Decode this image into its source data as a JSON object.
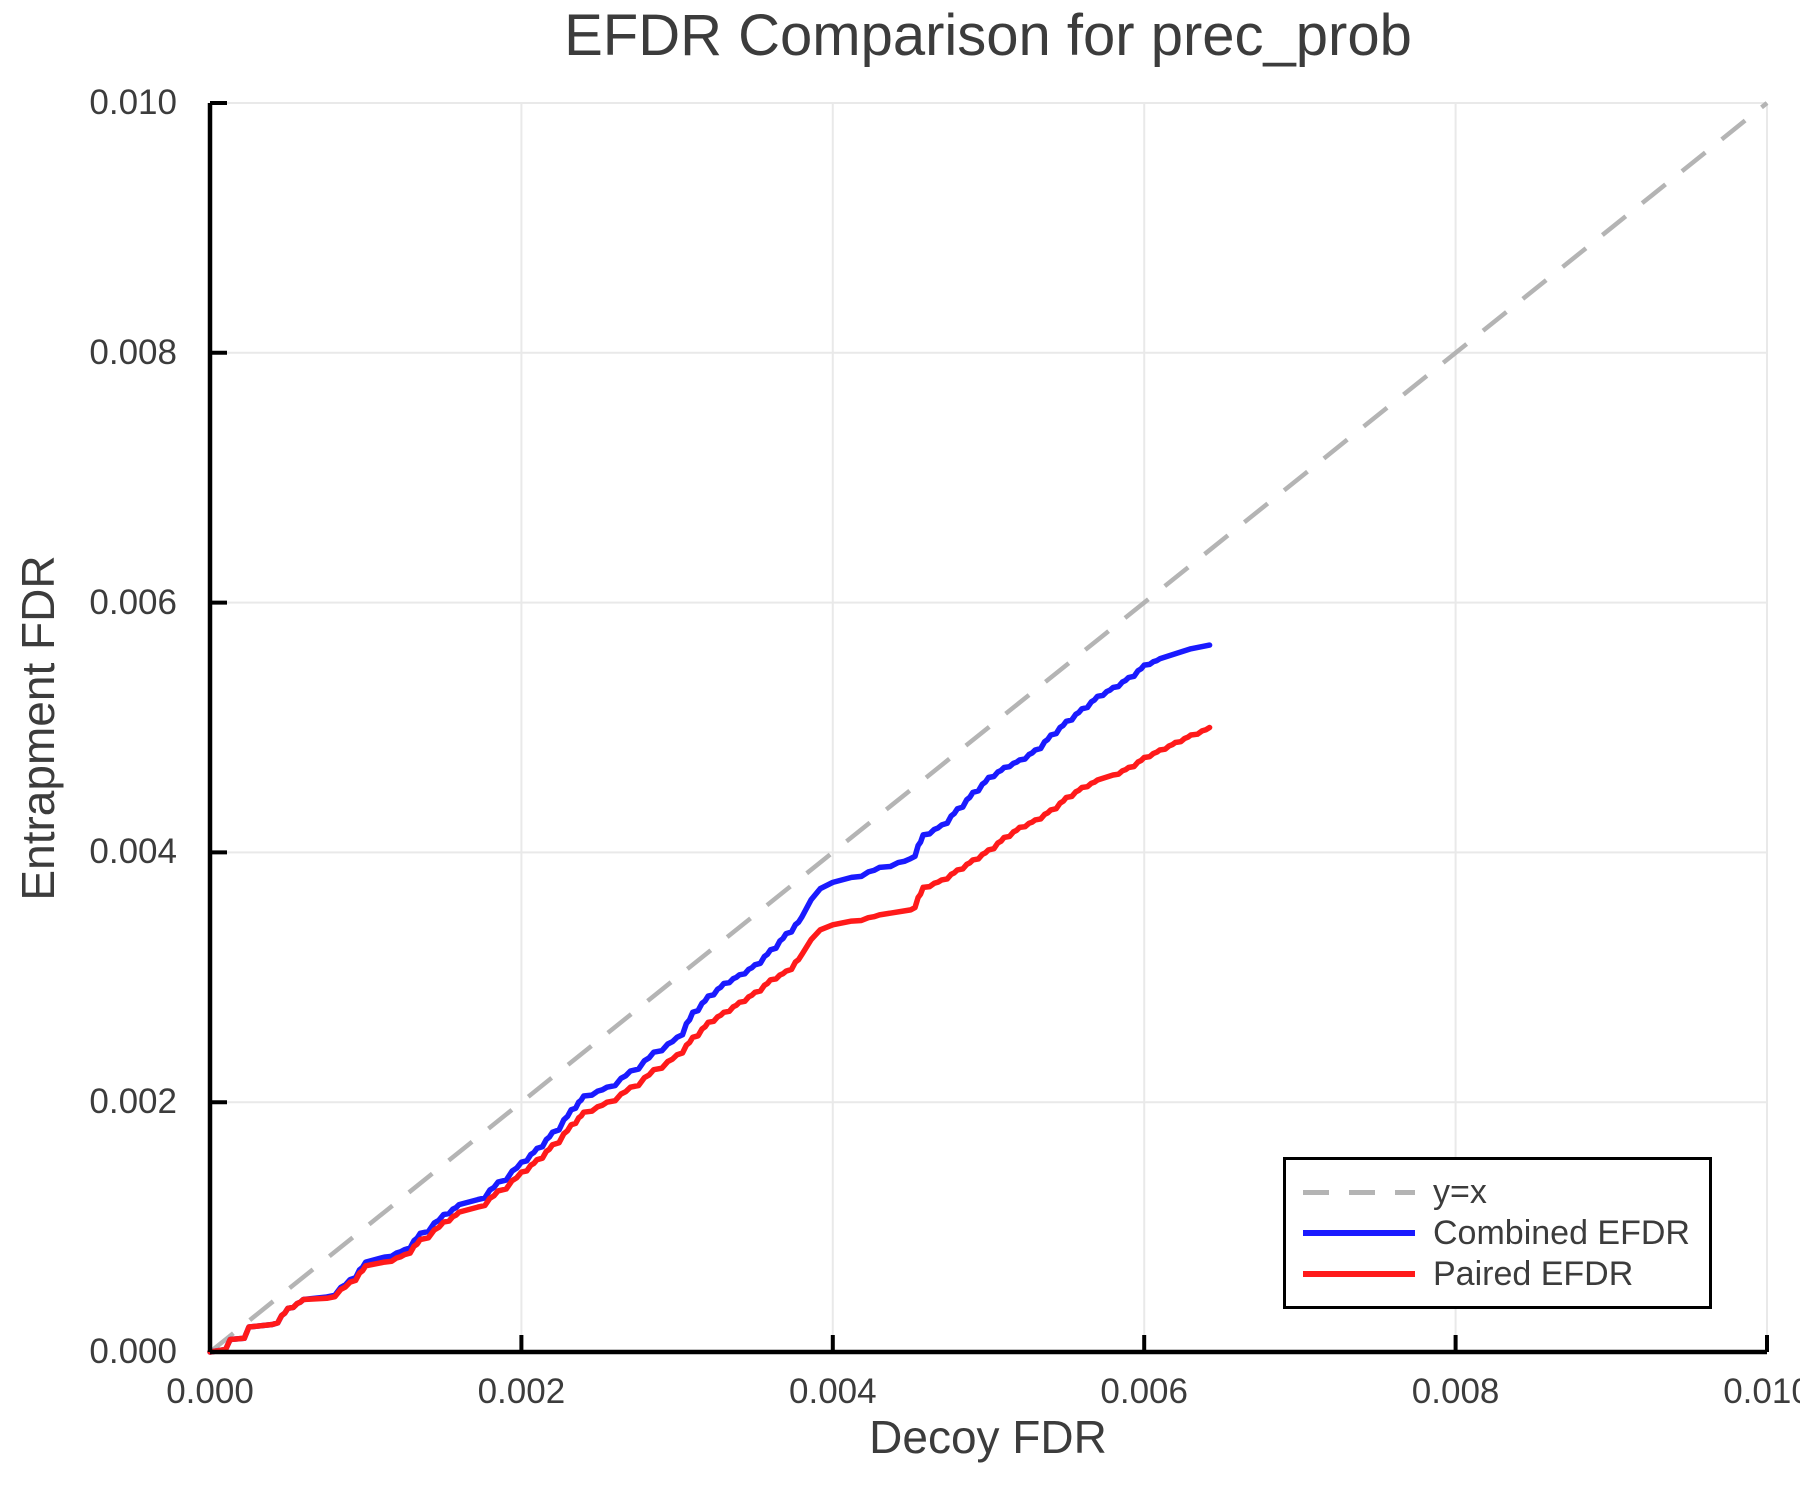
{
  "title": "EFDR Comparison for prec_prob",
  "axes": {
    "xlabel": "Decoy FDR",
    "ylabel": "Entrapment FDR"
  },
  "legend": {
    "position": "bottom-right",
    "entries": [
      {
        "label": "y=x",
        "style": "dashed",
        "color": "#b4b4b4"
      },
      {
        "label": "Combined EFDR",
        "style": "solid",
        "color": "#1a1aff"
      },
      {
        "label": "Paired EFDR",
        "style": "solid",
        "color": "#ff1a1a"
      }
    ]
  },
  "colors": {
    "grid": "#e9e9e9",
    "spine": "#000000",
    "text": "#3c3c3c",
    "background": "#ffffff",
    "combined": "#1a1aff",
    "paired": "#ff1a1a",
    "identity": "#b4b4b4"
  },
  "chart_data": {
    "type": "line",
    "title": "EFDR Comparison for prec_prob",
    "xlabel": "Decoy FDR",
    "ylabel": "Entrapment FDR",
    "xlim": [
      0.0,
      0.01
    ],
    "ylim": [
      0.0,
      0.01
    ],
    "grid": true,
    "legend_position": "bottom-right",
    "x_ticks": [
      0.0,
      0.002,
      0.004,
      0.006,
      0.008,
      0.01
    ],
    "y_ticks": [
      0.0,
      0.002,
      0.004,
      0.006,
      0.008,
      0.01
    ],
    "x_tick_labels": [
      "0.000",
      "0.002",
      "0.004",
      "0.006",
      "0.008",
      "0.010"
    ],
    "y_tick_labels": [
      "0.000",
      "0.002",
      "0.004",
      "0.006",
      "0.008",
      "0.010"
    ],
    "reference_line": {
      "label": "y=x",
      "from": [
        0.0,
        0.0
      ],
      "to": [
        0.01,
        0.01
      ],
      "style": "dashed",
      "color": "#b4b4b4"
    },
    "series": [
      {
        "id": "combined-efdr",
        "name": "Combined EFDR",
        "color": "#1a1aff",
        "points": [
          [
            0.0,
            0.0
          ],
          [
            0.0001,
            2e-05
          ],
          [
            0.00013,
            0.0001
          ],
          [
            0.00022,
            0.00011
          ],
          [
            0.00025,
            0.0002
          ],
          [
            0.0004,
            0.00022
          ],
          [
            0.0005,
            0.00035
          ],
          [
            0.0006,
            0.00042
          ],
          [
            0.00075,
            0.00044
          ],
          [
            0.0009,
            0.00058
          ],
          [
            0.001,
            0.00072
          ],
          [
            0.00112,
            0.00076
          ],
          [
            0.00125,
            0.00082
          ],
          [
            0.00135,
            0.00095
          ],
          [
            0.0015,
            0.0011
          ],
          [
            0.0016,
            0.00118
          ],
          [
            0.00172,
            0.00122
          ],
          [
            0.00185,
            0.00136
          ],
          [
            0.002,
            0.00152
          ],
          [
            0.0021,
            0.00163
          ],
          [
            0.0022,
            0.00176
          ],
          [
            0.00232,
            0.00194
          ],
          [
            0.0024,
            0.00205
          ],
          [
            0.00255,
            0.00212
          ],
          [
            0.0027,
            0.00225
          ],
          [
            0.00285,
            0.0024
          ],
          [
            0.003,
            0.00252
          ],
          [
            0.0031,
            0.00272
          ],
          [
            0.0032,
            0.00285
          ],
          [
            0.0033,
            0.00295
          ],
          [
            0.0034,
            0.00302
          ],
          [
            0.0035,
            0.0031
          ],
          [
            0.0036,
            0.00322
          ],
          [
            0.0037,
            0.00335
          ],
          [
            0.0038,
            0.00348
          ],
          [
            0.00386,
            0.00362
          ],
          [
            0.00392,
            0.00371
          ],
          [
            0.004,
            0.00376
          ],
          [
            0.00412,
            0.0038
          ],
          [
            0.0043,
            0.00388
          ],
          [
            0.0045,
            0.00395
          ],
          [
            0.00458,
            0.00414
          ],
          [
            0.0047,
            0.00422
          ],
          [
            0.0048,
            0.00435
          ],
          [
            0.0049,
            0.00448
          ],
          [
            0.005,
            0.0046
          ],
          [
            0.0051,
            0.00468
          ],
          [
            0.0052,
            0.00474
          ],
          [
            0.0053,
            0.00482
          ],
          [
            0.0054,
            0.00494
          ],
          [
            0.0055,
            0.00505
          ],
          [
            0.0056,
            0.00515
          ],
          [
            0.0057,
            0.00525
          ],
          [
            0.0058,
            0.00532
          ],
          [
            0.0059,
            0.0054
          ],
          [
            0.006,
            0.0055
          ],
          [
            0.0061,
            0.00555
          ],
          [
            0.0062,
            0.00559
          ],
          [
            0.0063,
            0.00563
          ],
          [
            0.00642,
            0.00566
          ]
        ]
      },
      {
        "id": "paired-efdr",
        "name": "Paired EFDR",
        "color": "#ff1a1a",
        "points": [
          [
            0.0,
            0.0
          ],
          [
            0.0001,
            2e-05
          ],
          [
            0.00013,
            0.0001
          ],
          [
            0.00022,
            0.00011
          ],
          [
            0.00025,
            0.0002
          ],
          [
            0.0004,
            0.00022
          ],
          [
            0.0005,
            0.00035
          ],
          [
            0.0006,
            0.00042
          ],
          [
            0.00075,
            0.00043
          ],
          [
            0.0009,
            0.00056
          ],
          [
            0.001,
            0.00069
          ],
          [
            0.00112,
            0.00072
          ],
          [
            0.00125,
            0.00078
          ],
          [
            0.00135,
            0.0009
          ],
          [
            0.0015,
            0.00104
          ],
          [
            0.0016,
            0.00112
          ],
          [
            0.00172,
            0.00116
          ],
          [
            0.00185,
            0.00129
          ],
          [
            0.002,
            0.00144
          ],
          [
            0.0021,
            0.00154
          ],
          [
            0.0022,
            0.00166
          ],
          [
            0.00232,
            0.00182
          ],
          [
            0.0024,
            0.00192
          ],
          [
            0.00255,
            0.002
          ],
          [
            0.0027,
            0.00212
          ],
          [
            0.00285,
            0.00226
          ],
          [
            0.003,
            0.00238
          ],
          [
            0.0031,
            0.00252
          ],
          [
            0.0032,
            0.00264
          ],
          [
            0.0033,
            0.00272
          ],
          [
            0.0034,
            0.0028
          ],
          [
            0.0035,
            0.00288
          ],
          [
            0.0036,
            0.00298
          ],
          [
            0.0037,
            0.00305
          ],
          [
            0.0038,
            0.00318
          ],
          [
            0.00386,
            0.0033
          ],
          [
            0.00392,
            0.00338
          ],
          [
            0.004,
            0.00342
          ],
          [
            0.00412,
            0.00345
          ],
          [
            0.0043,
            0.0035
          ],
          [
            0.0045,
            0.00354
          ],
          [
            0.00458,
            0.00372
          ],
          [
            0.0047,
            0.00378
          ],
          [
            0.0048,
            0.00386
          ],
          [
            0.0049,
            0.00394
          ],
          [
            0.005,
            0.00402
          ],
          [
            0.0051,
            0.00412
          ],
          [
            0.0052,
            0.0042
          ],
          [
            0.0053,
            0.00426
          ],
          [
            0.0054,
            0.00434
          ],
          [
            0.0055,
            0.00444
          ],
          [
            0.0056,
            0.00452
          ],
          [
            0.0057,
            0.00458
          ],
          [
            0.0058,
            0.00462
          ],
          [
            0.0059,
            0.00468
          ],
          [
            0.006,
            0.00476
          ],
          [
            0.0061,
            0.00482
          ],
          [
            0.0062,
            0.00488
          ],
          [
            0.0063,
            0.00494
          ],
          [
            0.00642,
            0.005
          ]
        ]
      }
    ]
  }
}
